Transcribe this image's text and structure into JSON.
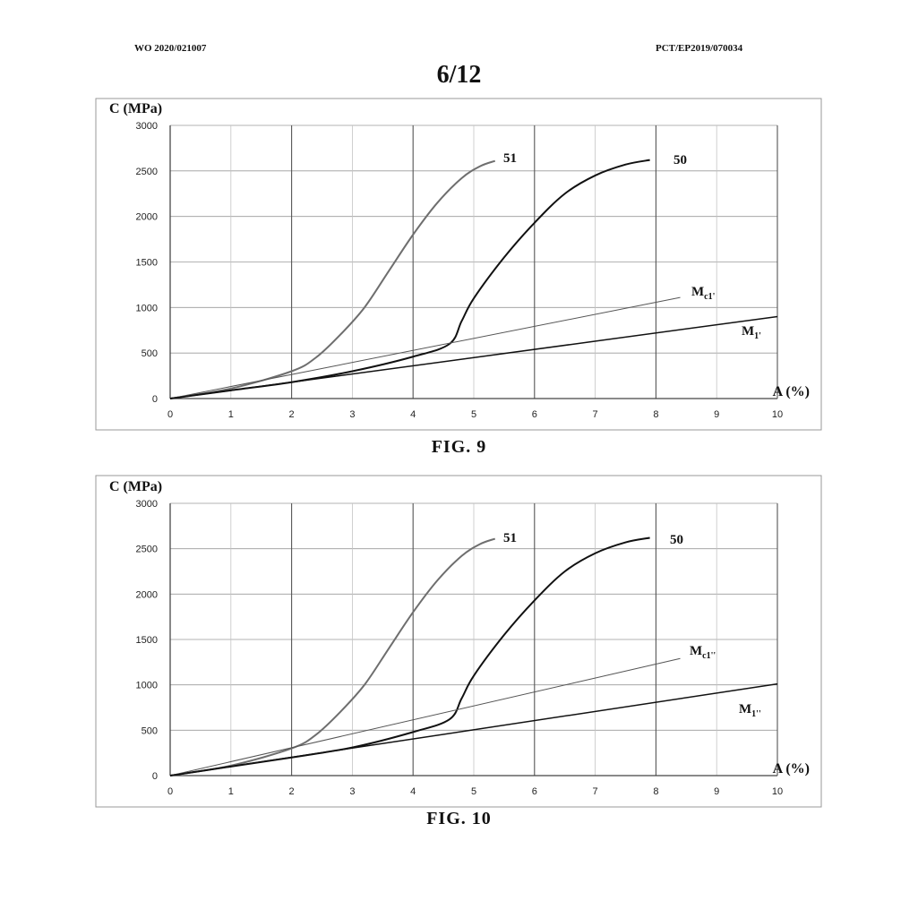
{
  "header": {
    "left": "WO 2020/021007",
    "right": "PCT/EP2019/070034",
    "page": "6/12"
  },
  "chart_data": [
    {
      "caption": "FIG. 9",
      "type": "line",
      "title": "",
      "xlabel": "A (%)",
      "ylabel": "C (MPa)",
      "xlim": [
        0,
        10
      ],
      "ylim": [
        0,
        3000
      ],
      "xticks": [
        "0",
        "1",
        "2",
        "3",
        "4",
        "5",
        "6",
        "7",
        "8",
        "9",
        "10"
      ],
      "yticks": [
        "0",
        "500",
        "1000",
        "1500",
        "2000",
        "2500",
        "3000"
      ],
      "grid": true,
      "series": [
        {
          "name": "51",
          "color": "#6e6e6e",
          "x": [
            0,
            1,
            2,
            2.4,
            2.8,
            3.2,
            3.6,
            4.0,
            4.4,
            4.8,
            5.1,
            5.35
          ],
          "y": [
            0,
            110,
            300,
            450,
            700,
            1000,
            1400,
            1800,
            2150,
            2420,
            2550,
            2610
          ]
        },
        {
          "name": "50",
          "color": "#111111",
          "x": [
            0,
            1,
            2,
            3,
            4,
            4.6,
            4.8,
            5.0,
            5.5,
            6.0,
            6.5,
            7.0,
            7.5,
            7.9
          ],
          "y": [
            0,
            90,
            180,
            300,
            460,
            600,
            850,
            1100,
            1550,
            1930,
            2250,
            2450,
            2570,
            2620
          ]
        },
        {
          "name": "M",
          "sub": "c1'",
          "color": "#555555",
          "x": [
            0,
            8.4
          ],
          "y": [
            0,
            1110
          ]
        },
        {
          "name": "M",
          "sub": "1'",
          "color": "#111111",
          "x": [
            0,
            10
          ],
          "y": [
            0,
            900
          ]
        }
      ]
    },
    {
      "caption": "FIG. 10",
      "type": "line",
      "title": "",
      "xlabel": "A (%)",
      "ylabel": "C (MPa)",
      "xlim": [
        0,
        10
      ],
      "ylim": [
        0,
        3000
      ],
      "xticks": [
        "0",
        "1",
        "2",
        "3",
        "4",
        "5",
        "6",
        "7",
        "8",
        "9",
        "10"
      ],
      "yticks": [
        "0",
        "500",
        "1000",
        "1500",
        "2000",
        "2500",
        "3000"
      ],
      "grid": true,
      "series": [
        {
          "name": "51",
          "color": "#6e6e6e",
          "x": [
            0,
            1,
            2,
            2.4,
            2.8,
            3.2,
            3.6,
            4.0,
            4.4,
            4.8,
            5.1,
            5.35
          ],
          "y": [
            0,
            110,
            300,
            450,
            700,
            1000,
            1400,
            1800,
            2150,
            2420,
            2550,
            2610
          ]
        },
        {
          "name": "50",
          "color": "#111111",
          "x": [
            0,
            1,
            2,
            3,
            4,
            4.6,
            4.8,
            5.0,
            5.5,
            6.0,
            6.5,
            7.0,
            7.5,
            7.9
          ],
          "y": [
            0,
            100,
            200,
            310,
            480,
            620,
            850,
            1100,
            1550,
            1930,
            2250,
            2450,
            2570,
            2620
          ]
        },
        {
          "name": "M",
          "sub": "c1''",
          "color": "#555555",
          "x": [
            0,
            8.4
          ],
          "y": [
            0,
            1290
          ]
        },
        {
          "name": "M",
          "sub": "1''",
          "color": "#111111",
          "x": [
            0,
            10
          ],
          "y": [
            0,
            1010
          ]
        }
      ]
    }
  ]
}
